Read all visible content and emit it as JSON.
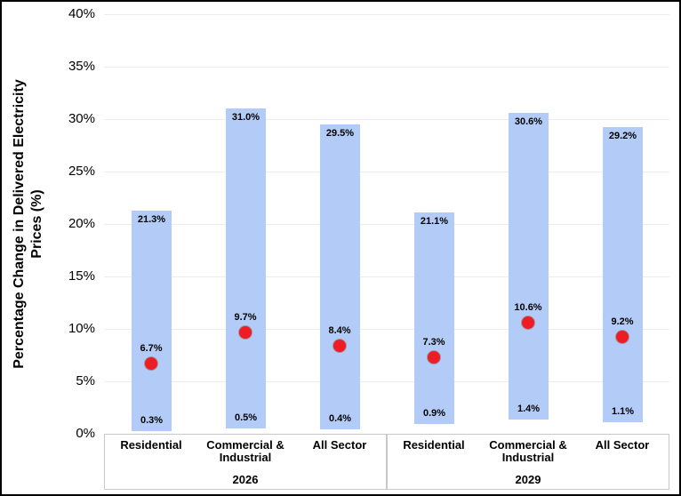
{
  "chart_data": {
    "type": "bar",
    "subtype": "floating-range-bars-with-markers",
    "title": "",
    "ylabel_line1": "Percentage Change in Delivered Electricity",
    "ylabel_line2": "Prices (%)",
    "ylim": [
      0,
      40
    ],
    "ytick_step": 5,
    "ytick_labels": [
      "0%",
      "5%",
      "10%",
      "15%",
      "20%",
      "25%",
      "30%",
      "35%",
      "40%"
    ],
    "grid": true,
    "legend": "none",
    "groups": [
      {
        "label": "2026",
        "bars": [
          {
            "category": "Residential",
            "low": 0.3,
            "high": 21.3,
            "marker": 6.7,
            "low_label": "0.3%",
            "high_label": "21.3%",
            "marker_label": "6.7%"
          },
          {
            "category": "Commercial & Industrial",
            "low": 0.5,
            "high": 31.0,
            "marker": 9.7,
            "low_label": "0.5%",
            "high_label": "31.0%",
            "marker_label": "9.7%"
          },
          {
            "category": "All Sector",
            "low": 0.4,
            "high": 29.5,
            "marker": 8.4,
            "low_label": "0.4%",
            "high_label": "29.5%",
            "marker_label": "8.4%"
          }
        ]
      },
      {
        "label": "2029",
        "bars": [
          {
            "category": "Residential",
            "low": 0.9,
            "high": 21.1,
            "marker": 7.3,
            "low_label": "0.9%",
            "high_label": "21.1%",
            "marker_label": "7.3%"
          },
          {
            "category": "Commercial & Industrial",
            "low": 1.4,
            "high": 30.6,
            "marker": 10.6,
            "low_label": "1.4%",
            "high_label": "30.6%",
            "marker_label": "10.6%"
          },
          {
            "category": "All Sector",
            "low": 1.1,
            "high": 29.2,
            "marker": 9.2,
            "low_label": "1.1%",
            "high_label": "29.2%",
            "marker_label": "9.2%"
          }
        ]
      }
    ],
    "colors": {
      "bar_fill": "#b3ccf7",
      "marker_fill": "#ee1c25",
      "gridline": "#ececec",
      "axis_line": "#c6c6c6",
      "text": "#000000",
      "frame_border": "#000000"
    }
  }
}
